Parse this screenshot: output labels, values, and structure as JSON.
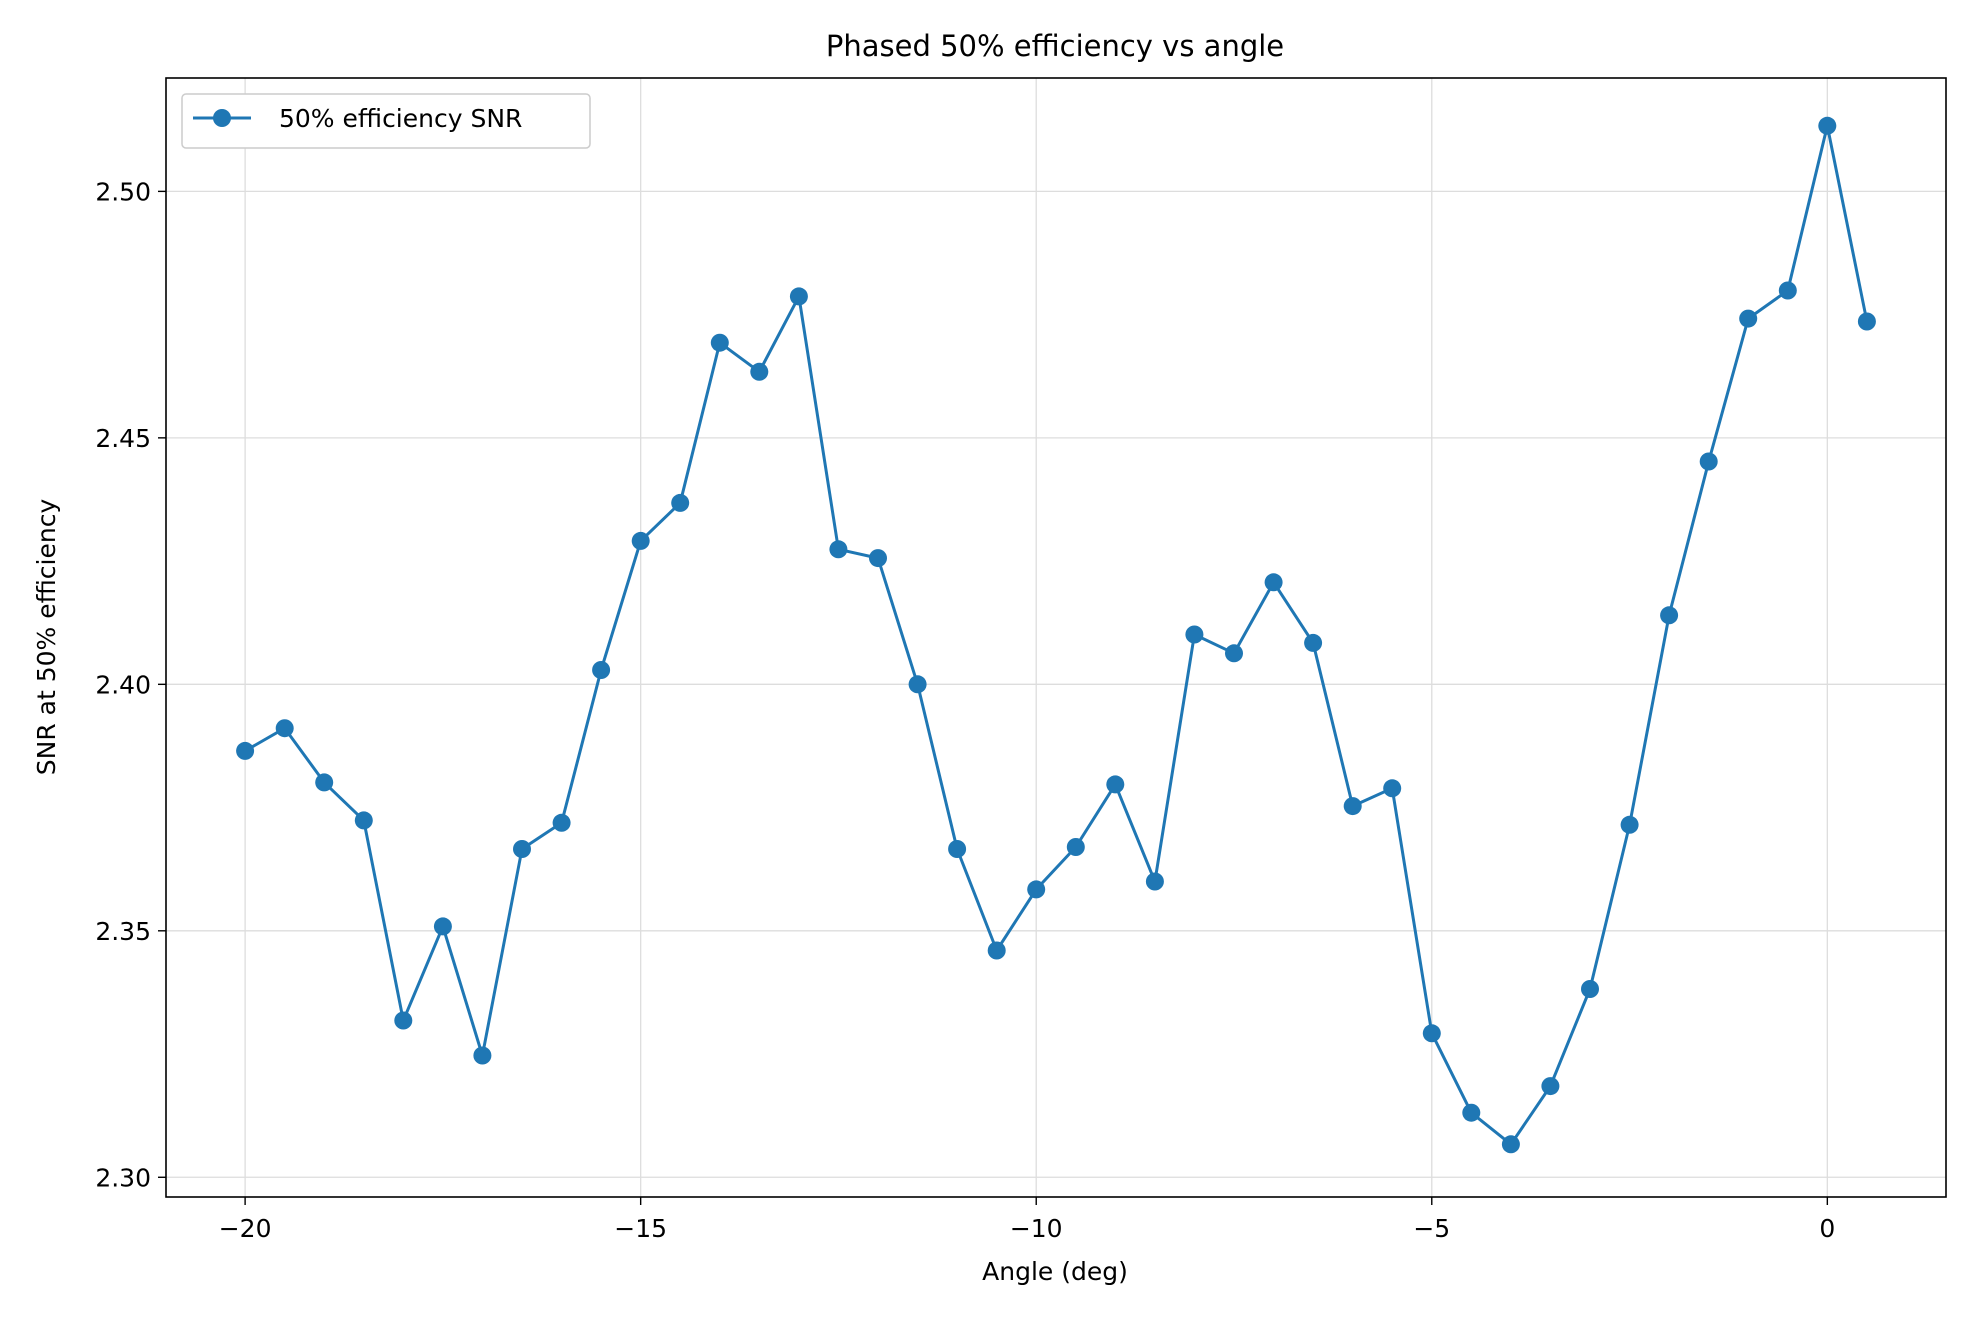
{
  "chart_data": {
    "type": "line",
    "title": "Phased 50% efficiency vs angle",
    "xlabel": "Angle (deg)",
    "ylabel": "SNR at 50% efficiency",
    "xlim": [
      -21.0,
      1.5
    ],
    "ylim": [
      2.296,
      2.523
    ],
    "xticks": [
      -20,
      -15,
      -10,
      -5,
      0
    ],
    "xtick_labels": [
      "−20",
      "−15",
      "−10",
      "−5",
      "0"
    ],
    "yticks": [
      2.3,
      2.35,
      2.4,
      2.45,
      2.5
    ],
    "ytick_labels": [
      "2.30",
      "2.35",
      "2.40",
      "2.45",
      "2.50"
    ],
    "grid": true,
    "legend_position": "upper-left",
    "series": [
      {
        "name": "50% efficiency SNR",
        "color": "#1f77b4",
        "marker": "circle",
        "x": [
          -20,
          -19.5,
          -19,
          -18.5,
          -18,
          -17.5,
          -17,
          -16.5,
          -16,
          -15.5,
          -15,
          -14.5,
          -14,
          -13.5,
          -13,
          -12.5,
          -12,
          -11.5,
          -11,
          -10.5,
          -10,
          -9.5,
          -9,
          -8.5,
          -8,
          -7.5,
          -7,
          -6.5,
          -6,
          -5.5,
          -5,
          -4.5,
          -4,
          -3.5,
          -3,
          -2.5,
          -2,
          -1.5,
          -1,
          -0.5,
          0,
          0.5
        ],
        "y": [
          2.3865,
          2.3911,
          2.3801,
          2.3724,
          2.3318,
          2.3509,
          2.3247,
          2.3666,
          2.3719,
          2.4029,
          2.4291,
          2.4368,
          2.4693,
          2.4634,
          2.4787,
          2.4274,
          2.4256,
          2.4,
          2.3666,
          2.346,
          2.3584,
          2.367,
          2.3797,
          2.36,
          2.4101,
          2.4063,
          2.4207,
          2.4084,
          2.3753,
          2.3789,
          2.3292,
          2.3131,
          2.3067,
          2.3185,
          2.3382,
          2.3715,
          2.414,
          2.4452,
          2.4742,
          2.4799,
          2.5133,
          2.4736
        ]
      }
    ]
  }
}
